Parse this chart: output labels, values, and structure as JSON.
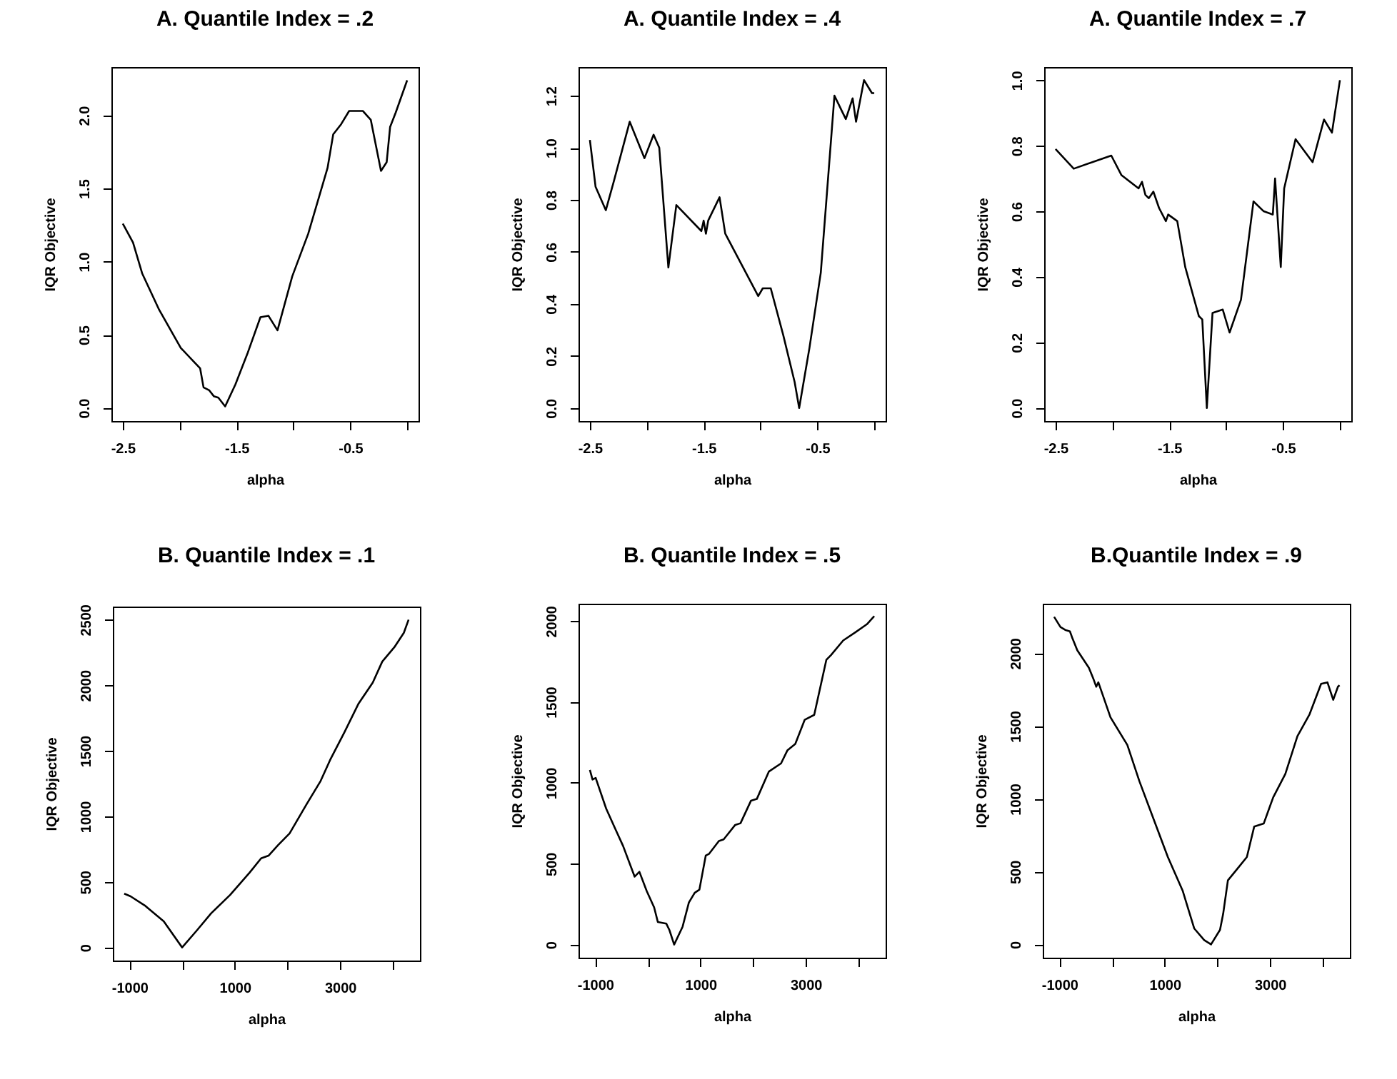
{
  "chart_data": [
    {
      "type": "line",
      "title": "A. Quantile Index = .2",
      "xlabel": "alpha",
      "ylabel": "IQR Objective",
      "x": [
        -2.5,
        -2.41,
        -2.33,
        -2.18,
        -1.99,
        -1.82,
        -1.79,
        -1.74,
        -1.7,
        -1.66,
        -1.6,
        -1.51,
        -1.4,
        -1.29,
        -1.22,
        -1.14,
        -1.01,
        -0.87,
        -0.7,
        -0.65,
        -0.58,
        -0.51,
        -0.39,
        -0.32,
        -0.23,
        -0.18,
        -0.15,
        -0.1,
        0
      ],
      "series": [
        {
          "color": "#000000",
          "values": [
            1.26,
            1.13,
            0.92,
            0.67,
            0.41,
            0.27,
            0.14,
            0.12,
            0.08,
            0.07,
            0.01,
            0.16,
            0.38,
            0.62,
            0.63,
            0.53,
            0.9,
            1.19,
            1.64,
            1.87,
            1.94,
            2.03,
            2.03,
            1.97,
            1.62,
            1.68,
            1.92,
            2.02,
            2.24
          ]
        }
      ],
      "xlim": [
        -2.6,
        0.1
      ],
      "ylim": [
        -0.09,
        2.33
      ],
      "xticks": [
        -2.5,
        {
          "value": -2,
          "label": null
        },
        -1.5,
        {
          "value": -1,
          "label": null
        },
        -0.5,
        {
          "value": 0,
          "label": null
        }
      ],
      "yticks": [
        {
          "value": 0,
          "label": "0.0"
        },
        0.5,
        {
          "value": 1,
          "label": "1.0"
        },
        1.5,
        {
          "value": 2,
          "label": "2.0"
        }
      ]
    },
    {
      "type": "line",
      "title": "A. Quantile Index = .4",
      "xlabel": "alpha",
      "ylabel": "IQR Objective",
      "x": [
        -2.5,
        -2.45,
        -2.36,
        -2.29,
        -2.15,
        -2.02,
        -1.94,
        -1.89,
        -1.81,
        -1.74,
        -1.52,
        -1.5,
        -1.48,
        -1.46,
        -1.36,
        -1.31,
        -1.02,
        -0.98,
        -0.91,
        -0.8,
        -0.7,
        -0.66,
        -0.57,
        -0.47,
        -0.35,
        -0.25,
        -0.19,
        -0.16,
        -0.09,
        -0.02,
        0
      ],
      "series": [
        {
          "color": "#000000",
          "values": [
            1.03,
            0.85,
            0.76,
            0.87,
            1.1,
            0.96,
            1.05,
            1.0,
            0.54,
            0.78,
            0.68,
            0.72,
            0.67,
            0.72,
            0.81,
            0.67,
            0.43,
            0.46,
            0.46,
            0.28,
            0.1,
            0.0,
            0.23,
            0.52,
            1.2,
            1.11,
            1.19,
            1.1,
            1.26,
            1.21,
            1.21
          ]
        }
      ],
      "xlim": [
        -2.6,
        0.1
      ],
      "ylim": [
        -0.05,
        1.31
      ],
      "xticks": [
        -2.5,
        {
          "value": -2,
          "label": null
        },
        -1.5,
        {
          "value": -1,
          "label": null
        },
        -0.5,
        {
          "value": 0,
          "label": null
        }
      ],
      "yticks": [
        {
          "value": 0,
          "label": "0.0"
        },
        0.2,
        0.4,
        0.6,
        0.8,
        {
          "value": 1,
          "label": "1.0"
        },
        1.2
      ]
    },
    {
      "type": "line",
      "title": "A. Quantile Index = .7",
      "xlabel": "alpha",
      "ylabel": "IQR Objective",
      "x": [
        -2.5,
        -2.34,
        -2.01,
        -1.92,
        -1.77,
        -1.74,
        -1.71,
        -1.68,
        -1.64,
        -1.59,
        -1.53,
        -1.51,
        -1.43,
        -1.36,
        -1.24,
        -1.21,
        -1.17,
        -1.12,
        -1.03,
        -0.97,
        -0.87,
        -0.76,
        -0.67,
        -0.59,
        -0.57,
        -0.52,
        -0.49,
        -0.39,
        -0.24,
        -0.14,
        -0.07,
        0
      ],
      "series": [
        {
          "color": "#000000",
          "values": [
            0.79,
            0.73,
            0.77,
            0.71,
            0.67,
            0.69,
            0.65,
            0.64,
            0.66,
            0.61,
            0.57,
            0.59,
            0.57,
            0.43,
            0.28,
            0.27,
            0.0,
            0.29,
            0.3,
            0.23,
            0.33,
            0.63,
            0.6,
            0.59,
            0.7,
            0.43,
            0.67,
            0.82,
            0.75,
            0.88,
            0.84,
            1.0
          ]
        }
      ],
      "xlim": [
        -2.6,
        0.1
      ],
      "ylim": [
        -0.04,
        1.04
      ],
      "xticks": [
        -2.5,
        {
          "value": -2,
          "label": null
        },
        -1.5,
        {
          "value": -1,
          "label": null
        },
        -0.5,
        {
          "value": 0,
          "label": null
        }
      ],
      "yticks": [
        {
          "value": 0,
          "label": "0.0"
        },
        0.2,
        0.4,
        0.6,
        0.8,
        {
          "value": 1,
          "label": "1.0"
        }
      ]
    },
    {
      "type": "line",
      "title": "B. Quantile Index = .1",
      "xlabel": "alpha",
      "ylabel": "IQR Objective",
      "x": [
        -1100,
        -980,
        -710,
        -350,
        0,
        280,
        550,
        910,
        1280,
        1500,
        1640,
        1820,
        2040,
        2360,
        2630,
        2810,
        3080,
        3350,
        3620,
        3800,
        4030,
        4210,
        4300
      ],
      "series": [
        {
          "color": "#000000",
          "values": [
            410,
            390,
            320,
            200,
            0,
            130,
            260,
            400,
            570,
            680,
            700,
            780,
            870,
            1090,
            1270,
            1430,
            1640,
            1860,
            2020,
            2180,
            2290,
            2400,
            2500
          ]
        }
      ],
      "xlim": [
        -1316,
        4516
      ],
      "ylim": [
        -100,
        2600
      ],
      "xticks": [
        -1000,
        {
          "value": 0,
          "label": null
        },
        1000,
        {
          "value": 2000,
          "label": null
        },
        3000,
        {
          "value": 4000,
          "label": null
        }
      ],
      "yticks": [
        0,
        500,
        1000,
        1500,
        2000,
        2500
      ]
    },
    {
      "type": "line",
      "title": "B. Quantile Index = .5",
      "xlabel": "alpha",
      "ylabel": "IQR Objective",
      "x": [
        -1100,
        -1050,
        -990,
        -790,
        -610,
        -470,
        -250,
        -160,
        -20,
        120,
        190,
        350,
        410,
        500,
        660,
        780,
        890,
        980,
        1100,
        1160,
        1350,
        1440,
        1660,
        1760,
        1960,
        2070,
        2300,
        2530,
        2650,
        2800,
        2980,
        3160,
        3390,
        3480,
        3710,
        3940,
        4160,
        4300
      ],
      "series": [
        {
          "color": "#000000",
          "values": [
            1080,
            1020,
            1030,
            840,
            710,
            610,
            420,
            450,
            330,
            230,
            140,
            130,
            90,
            0,
            110,
            260,
            320,
            340,
            550,
            560,
            640,
            650,
            740,
            750,
            890,
            900,
            1070,
            1120,
            1200,
            1240,
            1390,
            1420,
            1760,
            1790,
            1880,
            1930,
            1980,
            2030
          ]
        }
      ],
      "xlim": [
        -1316,
        4516
      ],
      "ylim": [
        -81,
        2107
      ],
      "xticks": [
        -1000,
        {
          "value": 0,
          "label": null
        },
        1000,
        {
          "value": 2000,
          "label": null
        },
        3000,
        {
          "value": 4000,
          "label": null
        }
      ],
      "yticks": [
        0,
        500,
        1000,
        1500,
        2000
      ]
    },
    {
      "type": "line",
      "title": "B.Quantile Index = .9",
      "xlabel": "alpha",
      "ylabel": "IQR Objective",
      "x": [
        -1100,
        -980,
        -890,
        -800,
        -760,
        -660,
        -440,
        -350,
        -300,
        -260,
        -30,
        290,
        520,
        790,
        1060,
        1340,
        1560,
        1750,
        1880,
        2050,
        2110,
        2200,
        2380,
        2560,
        2700,
        2880,
        3060,
        3290,
        3520,
        3750,
        3970,
        4090,
        4200,
        4290,
        4320
      ],
      "series": [
        {
          "color": "#000000",
          "values": [
            2250,
            2180,
            2160,
            2150,
            2110,
            2020,
            1900,
            1820,
            1770,
            1800,
            1560,
            1370,
            1120,
            860,
            600,
            370,
            110,
            30,
            0,
            100,
            210,
            440,
            520,
            600,
            810,
            830,
            1010,
            1170,
            1430,
            1580,
            1790,
            1800,
            1680,
            1770,
            1780
          ]
        }
      ],
      "xlim": [
        -1316,
        4516
      ],
      "ylim": [
        -91,
        2340
      ],
      "xticks": [
        -1000,
        {
          "value": 0,
          "label": null
        },
        1000,
        {
          "value": 2000,
          "label": null
        },
        3000,
        {
          "value": 4000,
          "label": null
        }
      ],
      "yticks": [
        0,
        500,
        1000,
        1500,
        2000
      ]
    }
  ]
}
